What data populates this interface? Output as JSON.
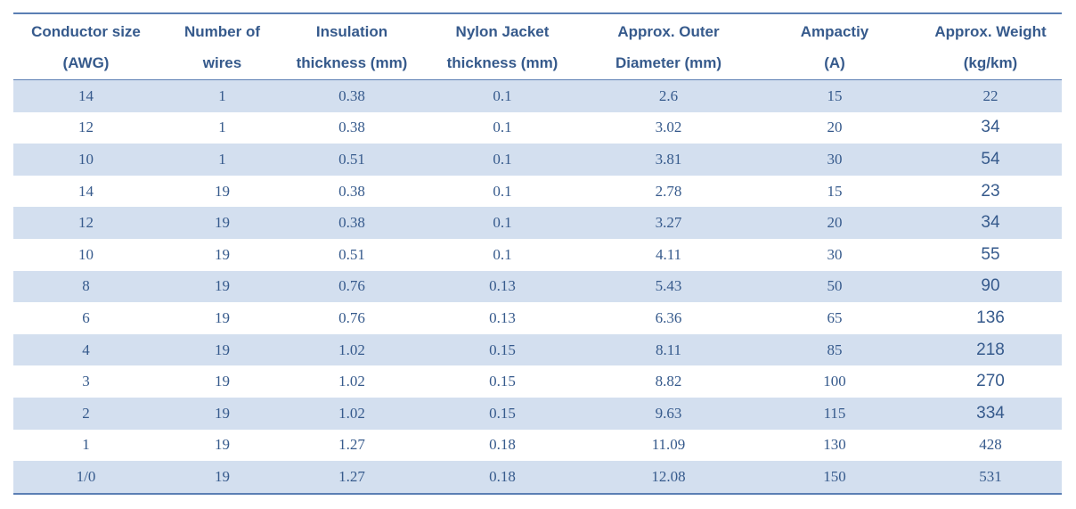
{
  "table": {
    "headers": [
      {
        "line1": "Conductor size",
        "line2": "(AWG)"
      },
      {
        "line1": "Number of",
        "line2": "wires"
      },
      {
        "line1": "Insulation",
        "line2": "thickness (mm)"
      },
      {
        "line1": "Nylon Jacket",
        "line2": "thickness (mm)"
      },
      {
        "line1": "Approx. Outer",
        "line2": "Diameter (mm)"
      },
      {
        "line1": "Ampactiy",
        "line2": "(A)"
      },
      {
        "line1": "Approx. Weight",
        "line2": "(kg/km)"
      }
    ],
    "rows": [
      [
        "14",
        "1",
        "0.38",
        "0.1",
        "2.6",
        "15",
        "22"
      ],
      [
        "12",
        "1",
        "0.38",
        "0.1",
        "3.02",
        "20",
        "34"
      ],
      [
        "10",
        "1",
        "0.51",
        "0.1",
        "3.81",
        "30",
        "54"
      ],
      [
        "14",
        "19",
        "0.38",
        "0.1",
        "2.78",
        "15",
        "23"
      ],
      [
        "12",
        "19",
        "0.38",
        "0.1",
        "3.27",
        "20",
        "34"
      ],
      [
        "10",
        "19",
        "0.51",
        "0.1",
        "4.11",
        "30",
        "55"
      ],
      [
        "8",
        "19",
        "0.76",
        "0.13",
        "5.43",
        "50",
        "90"
      ],
      [
        "6",
        "19",
        "0.76",
        "0.13",
        "6.36",
        "65",
        "136"
      ],
      [
        "4",
        "19",
        "1.02",
        "0.15",
        "8.11",
        "85",
        "218"
      ],
      [
        "3",
        "19",
        "1.02",
        "0.15",
        "8.82",
        "100",
        "270"
      ],
      [
        "2",
        "19",
        "1.02",
        "0.15",
        "9.63",
        "115",
        "334"
      ],
      [
        "1",
        "19",
        "1.27",
        "0.18",
        "11.09",
        "130",
        "428"
      ],
      [
        "1/0",
        "19",
        "1.27",
        "0.18",
        "12.08",
        "150",
        "531"
      ]
    ]
  },
  "colors": {
    "text": "#365a8c",
    "rule": "#5b7fb4",
    "row_shade": "#d3dfef",
    "background": "#ffffff"
  }
}
